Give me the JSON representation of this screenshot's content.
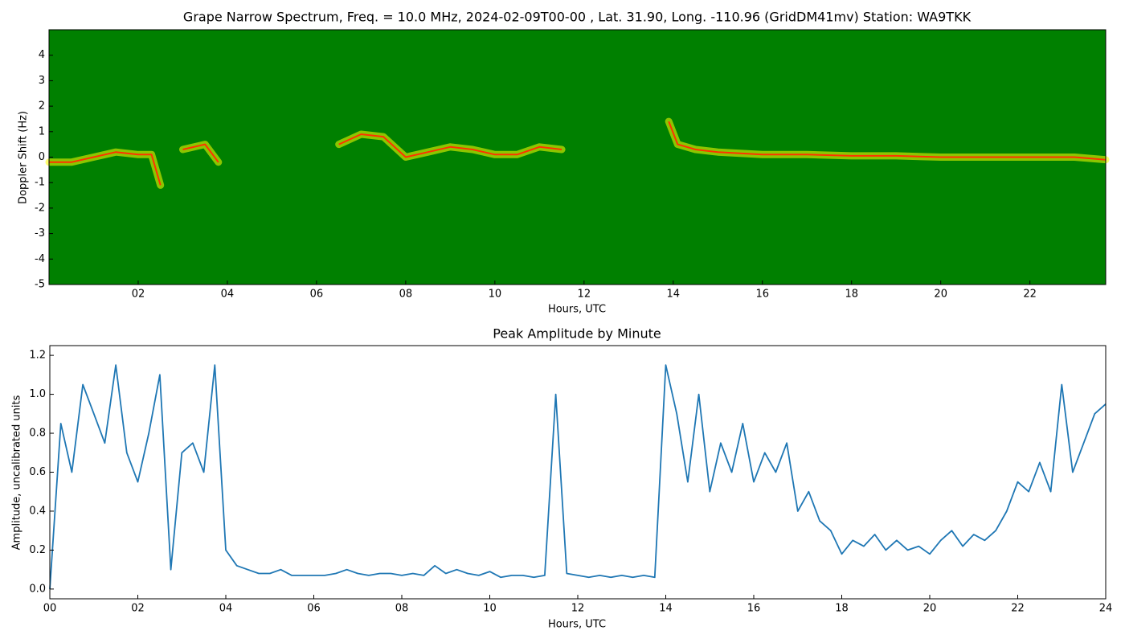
{
  "chart_data": [
    {
      "type": "spectrogram",
      "title": "Grape Narrow Spectrum, Freq. = 10.0 MHz, 2024-02-09T00-00 , Lat.  31.90, Long. -110.96 (GridDM41mv) Station: WA9TKK",
      "x_label": "Hours, UTC",
      "y_label": "Doppler Shift (Hz)",
      "background_color": "#008000",
      "x": [
        0,
        0.5,
        1,
        1.5,
        2,
        2.3,
        2.5,
        2.7,
        3,
        3.5,
        3.8,
        5,
        6.5,
        7,
        7.5,
        8,
        8.5,
        9,
        9.5,
        10,
        10.5,
        11,
        11.5,
        12.5,
        13.9,
        14.1,
        14.5,
        15,
        16,
        17,
        18,
        19,
        20,
        21,
        22,
        23,
        23.7
      ],
      "series": [
        {
          "color": "#ff3300",
          "glow_color": "#ffff00",
          "values": [
            -0.2,
            -0.2,
            0,
            0.2,
            0.1,
            0.1,
            -1.1,
            null,
            0.3,
            0.5,
            -0.2,
            null,
            0.5,
            0.9,
            0.8,
            0,
            0.2,
            0.4,
            0.3,
            0.1,
            0.1,
            0.4,
            0.3,
            null,
            1.4,
            0.5,
            0.3,
            0.2,
            0.1,
            0.1,
            0.05,
            0.05,
            0,
            0,
            0,
            0,
            -0.1
          ]
        }
      ],
      "xlim": [
        0,
        23.7
      ],
      "ylim": [
        -5,
        5
      ],
      "xticks": [
        {
          "value": 2,
          "label": "02"
        },
        {
          "value": 4,
          "label": "04"
        },
        {
          "value": 6,
          "label": "06"
        },
        {
          "value": 8,
          "label": "08"
        },
        {
          "value": 10,
          "label": "10"
        },
        {
          "value": 12,
          "label": "12"
        },
        {
          "value": 14,
          "label": "14"
        },
        {
          "value": 16,
          "label": "16"
        },
        {
          "value": 18,
          "label": "18"
        },
        {
          "value": 20,
          "label": "20"
        },
        {
          "value": 22,
          "label": "22"
        }
      ],
      "yticks": [
        -5,
        -4,
        -3,
        -2,
        -1,
        0,
        1,
        2,
        3,
        4
      ]
    },
    {
      "type": "line",
      "title": "Peak Amplitude by Minute",
      "x_label": "Hours, UTC",
      "y_label": "Amplitude, uncalibrated units",
      "x": [
        0,
        0.25,
        0.5,
        0.75,
        1,
        1.25,
        1.5,
        1.75,
        2,
        2.25,
        2.5,
        2.75,
        3,
        3.25,
        3.5,
        3.75,
        4,
        4.25,
        4.5,
        4.75,
        5,
        5.25,
        5.5,
        5.75,
        6,
        6.25,
        6.5,
        6.75,
        7,
        7.25,
        7.5,
        7.75,
        8,
        8.25,
        8.5,
        8.75,
        9,
        9.25,
        9.5,
        9.75,
        10,
        10.25,
        10.5,
        10.75,
        11,
        11.25,
        11.5,
        11.75,
        12,
        12.25,
        12.5,
        12.75,
        13,
        13.25,
        13.5,
        13.75,
        14,
        14.25,
        14.5,
        14.75,
        15,
        15.25,
        15.5,
        15.75,
        16,
        16.25,
        16.5,
        16.75,
        17,
        17.25,
        17.5,
        17.75,
        18,
        18.25,
        18.5,
        18.75,
        19,
        19.25,
        19.5,
        19.75,
        20,
        20.25,
        20.5,
        20.75,
        21,
        21.25,
        21.5,
        21.75,
        22,
        22.25,
        22.5,
        22.75,
        23,
        23.25,
        23.5,
        23.75,
        24
      ],
      "series": [
        {
          "color": "#1f77b4",
          "values": [
            0.0,
            0.85,
            0.6,
            1.05,
            0.9,
            0.75,
            1.15,
            0.7,
            0.55,
            0.8,
            1.1,
            0.1,
            0.7,
            0.75,
            0.6,
            1.15,
            0.2,
            0.12,
            0.1,
            0.08,
            0.08,
            0.1,
            0.07,
            0.07,
            0.07,
            0.07,
            0.08,
            0.1,
            0.08,
            0.07,
            0.08,
            0.08,
            0.07,
            0.08,
            0.07,
            0.12,
            0.08,
            0.1,
            0.08,
            0.07,
            0.09,
            0.06,
            0.07,
            0.07,
            0.06,
            0.07,
            1.0,
            0.08,
            0.07,
            0.06,
            0.07,
            0.06,
            0.07,
            0.06,
            0.07,
            0.06,
            1.15,
            0.9,
            0.55,
            1.0,
            0.5,
            0.75,
            0.6,
            0.85,
            0.55,
            0.7,
            0.6,
            0.75,
            0.4,
            0.5,
            0.35,
            0.3,
            0.18,
            0.25,
            0.22,
            0.28,
            0.2,
            0.25,
            0.2,
            0.22,
            0.18,
            0.25,
            0.3,
            0.22,
            0.28,
            0.25,
            0.3,
            0.4,
            0.55,
            0.5,
            0.65,
            0.5,
            1.05,
            0.6,
            0.75,
            0.9,
            0.95
          ]
        }
      ],
      "xlim": [
        0,
        24
      ],
      "ylim": [
        -0.05,
        1.25
      ],
      "xticks": [
        {
          "value": 0,
          "label": "00"
        },
        {
          "value": 2,
          "label": "02"
        },
        {
          "value": 4,
          "label": "04"
        },
        {
          "value": 6,
          "label": "06"
        },
        {
          "value": 8,
          "label": "08"
        },
        {
          "value": 10,
          "label": "10"
        },
        {
          "value": 12,
          "label": "12"
        },
        {
          "value": 14,
          "label": "14"
        },
        {
          "value": 16,
          "label": "16"
        },
        {
          "value": 18,
          "label": "18"
        },
        {
          "value": 20,
          "label": "20"
        },
        {
          "value": 22,
          "label": "22"
        },
        {
          "value": 24,
          "label": "24"
        }
      ],
      "yticks": [
        {
          "value": 0,
          "label": "0.0"
        },
        {
          "value": 0.2,
          "label": "0.2"
        },
        {
          "value": 0.4,
          "label": "0.4"
        },
        {
          "value": 0.6,
          "label": "0.6"
        },
        {
          "value": 0.8,
          "label": "0.8"
        },
        {
          "value": 1.0,
          "label": "1.0"
        },
        {
          "value": 1.2,
          "label": "1.2"
        }
      ]
    }
  ]
}
